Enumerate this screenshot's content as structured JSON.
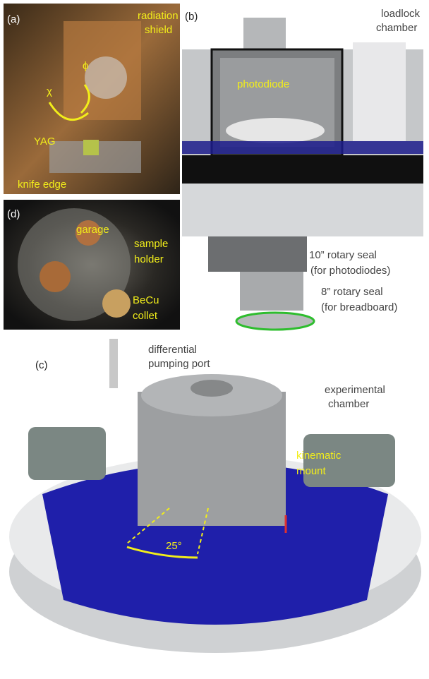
{
  "panels": [
    {
      "label": "(a)",
      "annotations": [
        [
          "radiation",
          "shield"
        ],
        [
          "ϕ"
        ],
        [
          "χ"
        ],
        [
          "YAG"
        ],
        [
          "knife edge"
        ]
      ]
    },
    {
      "label": "(b)",
      "annotations": [
        [
          "loadlock",
          "chamber"
        ],
        [
          "photodiode"
        ],
        [
          "10” rotary seal",
          "(for photodiodes)"
        ],
        [
          "8” rotary seal",
          "(for breadboard)"
        ]
      ]
    },
    {
      "label": "(c)",
      "annotations": [
        [
          "differential",
          "pumping port"
        ],
        [
          "experimental",
          "chamber"
        ],
        [
          "kinematic",
          "mount"
        ],
        [
          "25°"
        ]
      ]
    },
    {
      "label": "(d)",
      "annotations": [
        [
          "garage"
        ],
        [
          "sample",
          "holder"
        ],
        [
          "BeCu",
          "collet"
        ]
      ]
    }
  ]
}
